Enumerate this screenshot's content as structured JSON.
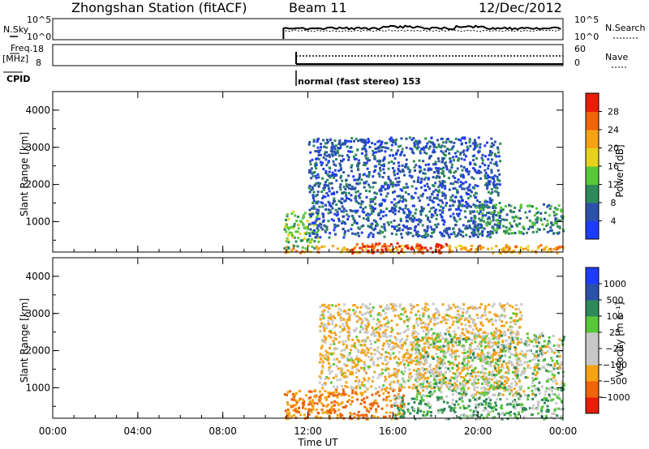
{
  "header": {
    "station": "Zhongshan Station (fitACF)",
    "beam": "Beam 11",
    "date": "12/Dec/2012"
  },
  "panels": {
    "nsky_label": "N.Sky",
    "nsky_ticks": [
      "10^5",
      "10^0"
    ],
    "nsearch_label": "N.Search",
    "nsearch_ticks": [
      "10^5",
      "10^0"
    ],
    "freq_label": "Freq.",
    "freq_unit": "[MHz]",
    "freq_ticks": [
      "18",
      "8"
    ],
    "nave_label": "Nave",
    "nave_ticks": [
      "60",
      "0"
    ],
    "cpid_label": "CPID",
    "cpid_text": "normal (fast stereo) 153"
  },
  "axes": {
    "y_label": "Slant Range [km]",
    "x_label": "Time UT",
    "y_ticks": [
      "1000",
      "2000",
      "3000",
      "4000"
    ],
    "x_ticks": [
      "00:00",
      "04:00",
      "08:00",
      "12:00",
      "16:00",
      "20:00",
      "00:00"
    ]
  },
  "colorbars": {
    "power_label": "Power [dB]",
    "power_ticks": [
      "4",
      "8",
      "12",
      "16",
      "20",
      "24",
      "28"
    ],
    "velocity_label": "Velocity [m s⁻¹]",
    "velocity_ticks": [
      "1000",
      "500",
      "100",
      "25",
      "−25",
      "−100",
      "−500",
      "−1000"
    ]
  },
  "colors": {
    "power_scale": [
      "#1e3cff",
      "#2b51a8",
      "#2e8a5a",
      "#58c83a",
      "#e6d21e",
      "#f5a214",
      "#f0640a",
      "#e61e0a"
    ],
    "velocity_scale": [
      "#e61e0a",
      "#f0640a",
      "#f5a214",
      "#c8c8c8",
      "#c8c8c8",
      "#58c83a",
      "#2e8a5a",
      "#2b51a8",
      "#1e3cff"
    ]
  },
  "chart_data": {
    "type": "heatmap",
    "time_range_ut": [
      "00:00",
      "24:00"
    ],
    "data_start_ut": "10:50",
    "range_km": [
      180,
      4500
    ],
    "power": {
      "label": "Power [dB]",
      "scale": [
        0,
        32
      ],
      "regions": [
        {
          "t0": 10.85,
          "t1": 24.0,
          "r0": 180,
          "r1": 400,
          "value": 22
        },
        {
          "t0": 14.0,
          "t1": 18.5,
          "r0": 180,
          "r1": 450,
          "value": 29
        },
        {
          "t0": 10.85,
          "t1": 12.5,
          "r0": 300,
          "r1": 1300,
          "value": 14
        },
        {
          "t0": 12.0,
          "t1": 21.0,
          "r0": 600,
          "r1": 3300,
          "value": 6
        },
        {
          "t0": 19.5,
          "t1": 24.0,
          "r0": 700,
          "r1": 1500,
          "value": 10
        }
      ]
    },
    "velocity": {
      "label": "Velocity [m s⁻¹]",
      "scale": [
        -1000,
        1000
      ],
      "regions": [
        {
          "t0": 10.85,
          "t1": 16.5,
          "r0": 180,
          "r1": 1000,
          "value": -500
        },
        {
          "t0": 12.5,
          "t1": 22.0,
          "r0": 1000,
          "r1": 3300,
          "value": -100
        },
        {
          "t0": 16.0,
          "t1": 24.0,
          "r0": 180,
          "r1": 800,
          "value": 100
        },
        {
          "t0": 17.0,
          "t1": 24.0,
          "r0": 800,
          "r1": 2500,
          "value": 0
        }
      ]
    }
  }
}
